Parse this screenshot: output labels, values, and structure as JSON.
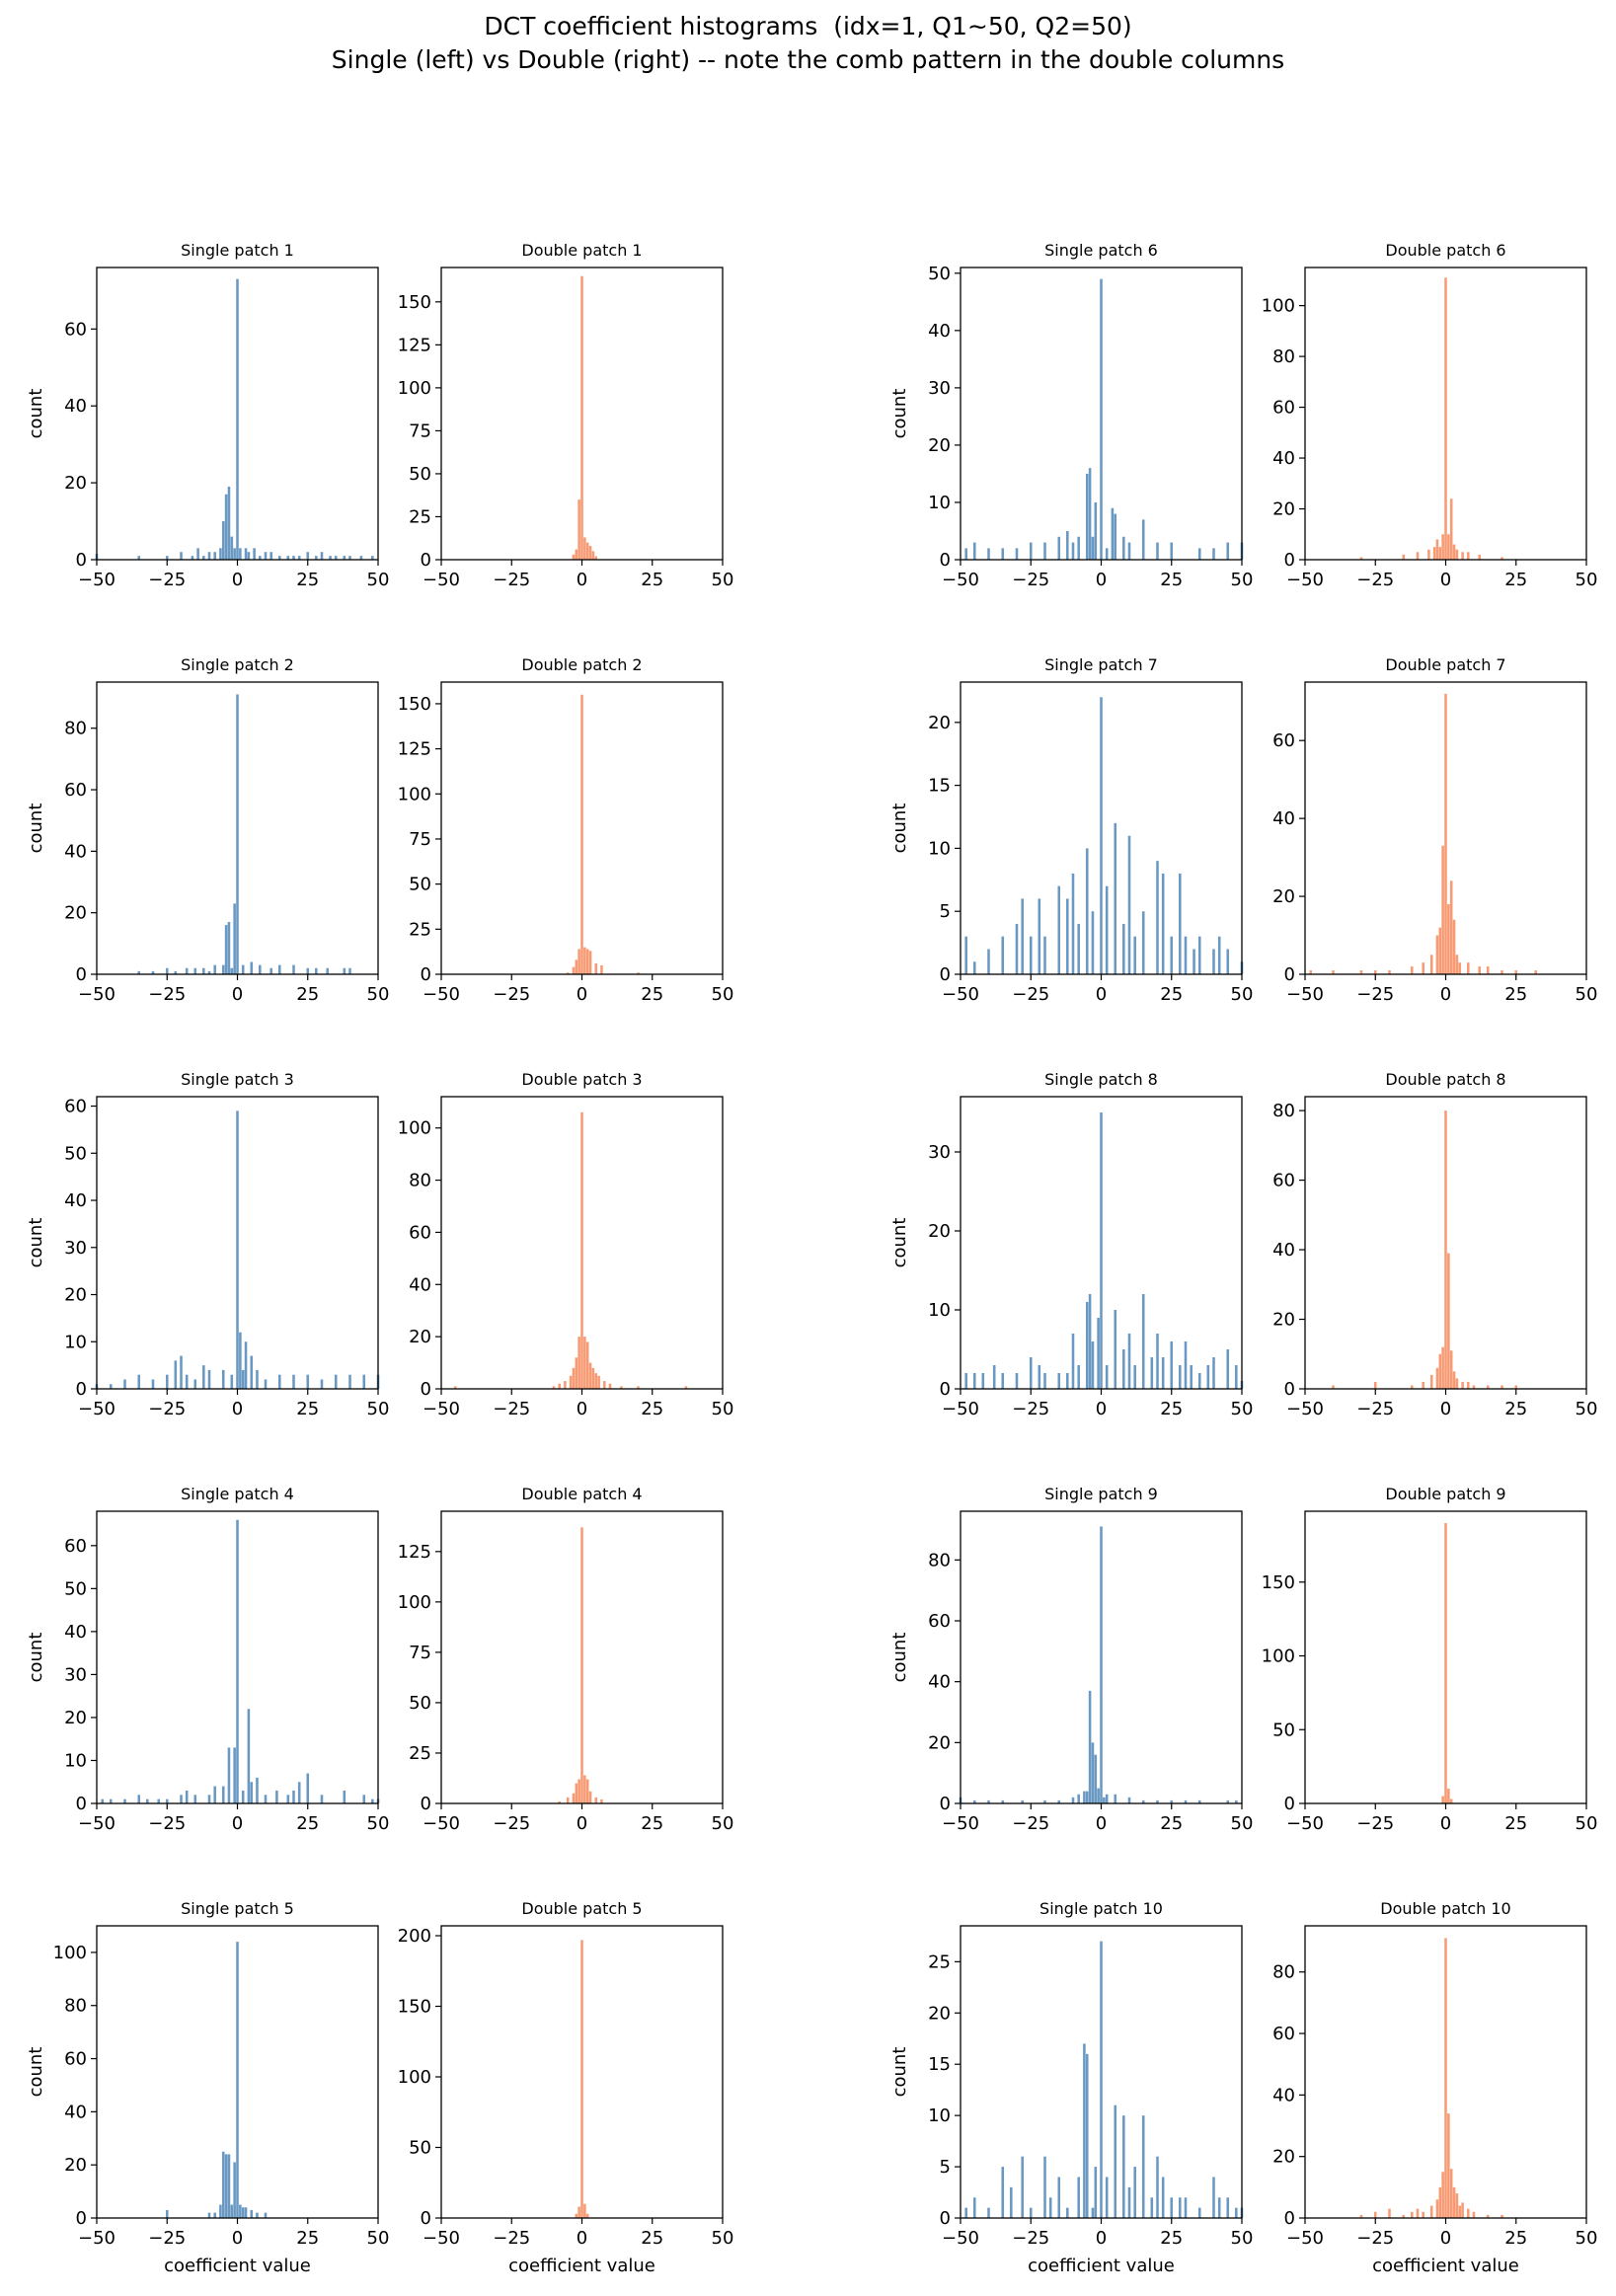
{
  "figure": {
    "title_line1": "DCT coefficient histograms  (idx=1, Q1~50, Q2=50)",
    "title_line2": "Single (left) vs Double (right) -- note the comb pattern in the double columns",
    "colors": {
      "single": "#4f87b9",
      "double": "#f7895c"
    },
    "xlabel": "coefficient value",
    "ylabel": "count"
  },
  "chart_data": [
    {
      "type": "bar",
      "title": "Single patch 1",
      "series": "single",
      "xlim": [
        -50,
        50
      ],
      "ylim": [
        0,
        76
      ],
      "yticks": [
        0,
        20,
        40,
        60
      ],
      "xticks": [
        -50,
        -25,
        0,
        25,
        50
      ],
      "x": [
        -50,
        -35,
        -25,
        -20,
        -16,
        -14,
        -12,
        -10,
        -8,
        -6,
        -5,
        -4,
        -3,
        -2,
        -1,
        0,
        1,
        3,
        4,
        6,
        8,
        10,
        12,
        15,
        18,
        20,
        22,
        25,
        28,
        30,
        33,
        35,
        38,
        40,
        44,
        48
      ],
      "values": [
        1.5,
        1,
        1,
        2,
        1,
        3,
        1,
        2,
        2,
        3,
        10,
        17,
        19,
        6,
        3,
        73,
        3,
        3,
        2,
        3,
        1,
        2,
        2,
        1,
        1,
        1,
        1,
        2,
        1,
        2,
        1,
        1,
        1,
        1,
        1,
        1
      ]
    },
    {
      "type": "bar",
      "title": "Double patch 1",
      "series": "double",
      "xlim": [
        -50,
        50
      ],
      "ylim": [
        0,
        170
      ],
      "yticks": [
        0,
        25,
        50,
        75,
        100,
        125,
        150
      ],
      "xticks": [
        -50,
        -25,
        0,
        25,
        50
      ],
      "x": [
        -3,
        -2,
        -1,
        0,
        1,
        2,
        3,
        4,
        5
      ],
      "values": [
        3,
        6,
        35,
        165,
        13,
        10,
        8,
        5,
        2
      ]
    },
    {
      "type": "bar",
      "title": "Single patch 2",
      "series": "single",
      "xlim": [
        -50,
        50
      ],
      "ylim": [
        0,
        95
      ],
      "yticks": [
        0,
        20,
        40,
        60,
        80
      ],
      "xticks": [
        -50,
        -25,
        0,
        25,
        50
      ],
      "x": [
        -35,
        -30,
        -25,
        -22,
        -18,
        -15,
        -12,
        -10,
        -8,
        -5,
        -4,
        -3,
        -2,
        -1,
        0,
        2,
        5,
        8,
        12,
        15,
        20,
        25,
        28,
        32,
        38,
        40
      ],
      "values": [
        1,
        1,
        2,
        1,
        2,
        2,
        2,
        1,
        3,
        3,
        16,
        17,
        2,
        23,
        91,
        3,
        4,
        3,
        2,
        3,
        3,
        2,
        2,
        2,
        2,
        2
      ]
    },
    {
      "type": "bar",
      "title": "Double patch 2",
      "series": "double",
      "xlim": [
        -50,
        50
      ],
      "ylim": [
        0,
        162
      ],
      "yticks": [
        0,
        25,
        50,
        75,
        100,
        125,
        150
      ],
      "xticks": [
        -50,
        -25,
        0,
        25,
        50
      ],
      "x": [
        -5,
        -3,
        -2,
        -1,
        0,
        1,
        2,
        3,
        5,
        7,
        20
      ],
      "values": [
        1,
        4,
        8,
        14,
        155,
        15,
        14,
        13,
        6,
        5,
        1
      ]
    },
    {
      "type": "bar",
      "title": "Single patch 3",
      "series": "single",
      "xlim": [
        -50,
        50
      ],
      "ylim": [
        0,
        62
      ],
      "yticks": [
        0,
        10,
        20,
        30,
        40,
        50,
        60
      ],
      "xticks": [
        -50,
        -25,
        0,
        25,
        50
      ],
      "x": [
        -50,
        -45,
        -40,
        -35,
        -30,
        -25,
        -22,
        -20,
        -18,
        -15,
        -12,
        -10,
        -5,
        -2,
        0,
        1,
        2,
        3,
        5,
        7,
        10,
        15,
        20,
        25,
        30,
        35,
        40,
        45,
        50
      ],
      "values": [
        1,
        1,
        2,
        3,
        2,
        3,
        6,
        7,
        3,
        2,
        5,
        4,
        4,
        3,
        59,
        12,
        4,
        10,
        7,
        4,
        2,
        3,
        3,
        3,
        2,
        3,
        3,
        3,
        3
      ]
    },
    {
      "type": "bar",
      "title": "Double patch 3",
      "series": "double",
      "xlim": [
        -50,
        50
      ],
      "ylim": [
        0,
        112
      ],
      "yticks": [
        0,
        20,
        40,
        60,
        80,
        100
      ],
      "xticks": [
        -50,
        -25,
        0,
        25,
        50
      ],
      "x": [
        -45,
        -10,
        -8,
        -6,
        -4,
        -3,
        -2,
        -1,
        0,
        1,
        2,
        3,
        4,
        5,
        6,
        8,
        10,
        14,
        20,
        37
      ],
      "values": [
        1,
        1,
        2,
        3,
        5,
        8,
        12,
        20,
        106,
        20,
        18,
        10,
        8,
        6,
        5,
        3,
        2,
        1,
        1,
        1
      ]
    },
    {
      "type": "bar",
      "title": "Single patch 4",
      "series": "single",
      "xlim": [
        -50,
        50
      ],
      "ylim": [
        0,
        68
      ],
      "yticks": [
        0,
        10,
        20,
        30,
        40,
        50,
        60
      ],
      "xticks": [
        -50,
        -25,
        0,
        25,
        50
      ],
      "x": [
        -48,
        -45,
        -40,
        -35,
        -32,
        -28,
        -25,
        -20,
        -18,
        -15,
        -10,
        -8,
        -5,
        -3,
        -1,
        0,
        2,
        4,
        5,
        7,
        10,
        14,
        18,
        20,
        22,
        25,
        30,
        38,
        45,
        48,
        50
      ],
      "values": [
        1,
        1,
        1,
        2,
        1,
        1,
        1,
        2,
        3,
        2,
        2,
        4,
        4,
        13,
        13,
        66,
        3,
        22,
        5,
        6,
        2,
        3,
        2,
        3,
        5,
        7,
        2,
        3,
        2,
        1,
        1
      ]
    },
    {
      "type": "bar",
      "title": "Double patch 4",
      "series": "double",
      "xlim": [
        -50,
        50
      ],
      "ylim": [
        0,
        145
      ],
      "yticks": [
        0,
        25,
        50,
        75,
        100,
        125
      ],
      "xticks": [
        -50,
        -25,
        0,
        25,
        50
      ],
      "x": [
        -8,
        -5,
        -3,
        -2,
        -1,
        0,
        1,
        2,
        3,
        5,
        7
      ],
      "values": [
        1,
        3,
        5,
        10,
        12,
        137,
        14,
        12,
        6,
        3,
        2
      ]
    },
    {
      "type": "bar",
      "title": "Single patch 5",
      "series": "single",
      "xlim": [
        -50,
        50
      ],
      "ylim": [
        0,
        110
      ],
      "yticks": [
        0,
        20,
        40,
        60,
        80,
        100
      ],
      "xticks": [
        -50,
        -25,
        0,
        25,
        50
      ],
      "x": [
        -25,
        -10,
        -8,
        -6,
        -5,
        -4,
        -3,
        -2,
        -1,
        0,
        1,
        2,
        3,
        5,
        7,
        10
      ],
      "values": [
        3,
        2,
        2,
        5,
        25,
        24,
        24,
        5,
        21,
        104,
        5,
        4,
        4,
        3,
        2,
        2
      ]
    },
    {
      "type": "bar",
      "title": "Double patch 5",
      "series": "double",
      "xlim": [
        -50,
        50
      ],
      "ylim": [
        0,
        207
      ],
      "yticks": [
        0,
        50,
        100,
        150,
        200
      ],
      "xticks": [
        -50,
        -25,
        0,
        25,
        50
      ],
      "x": [
        -2,
        -1,
        0,
        1,
        2
      ],
      "values": [
        3,
        8,
        197,
        10,
        3
      ]
    },
    {
      "type": "bar",
      "title": "Single patch 6",
      "series": "single",
      "xlim": [
        -50,
        50
      ],
      "ylim": [
        0,
        51
      ],
      "yticks": [
        0,
        10,
        20,
        30,
        40,
        50
      ],
      "xticks": [
        -50,
        -25,
        0,
        25,
        50
      ],
      "x": [
        -48,
        -45,
        -40,
        -35,
        -30,
        -25,
        -20,
        -15,
        -12,
        -10,
        -8,
        -5,
        -4,
        -3,
        -2,
        0,
        2,
        4,
        5,
        8,
        10,
        15,
        20,
        25,
        35,
        40,
        45,
        50
      ],
      "values": [
        2,
        3,
        2,
        2,
        2,
        3,
        3,
        4,
        5,
        3,
        4,
        15,
        16,
        4,
        10,
        49,
        2,
        9,
        8,
        4,
        3,
        7,
        3,
        3,
        2,
        2,
        3,
        3
      ]
    },
    {
      "type": "bar",
      "title": "Double patch 6",
      "series": "double",
      "xlim": [
        -50,
        50
      ],
      "ylim": [
        0,
        115
      ],
      "yticks": [
        0,
        20,
        40,
        60,
        80,
        100
      ],
      "xticks": [
        -50,
        -25,
        0,
        25,
        50
      ],
      "x": [
        -30,
        -15,
        -10,
        -6,
        -4,
        -3,
        -2,
        -1,
        0,
        1,
        2,
        3,
        4,
        6,
        8,
        12,
        20
      ],
      "values": [
        1,
        2,
        3,
        4,
        5,
        8,
        5,
        10,
        111,
        10,
        24,
        6,
        4,
        3,
        3,
        2,
        1
      ]
    },
    {
      "type": "bar",
      "title": "Single patch 7",
      "series": "single",
      "xlim": [
        -50,
        50
      ],
      "ylim": [
        0,
        23.2
      ],
      "yticks": [
        0,
        5,
        10,
        15,
        20
      ],
      "xticks": [
        -50,
        -25,
        0,
        25,
        50
      ],
      "x": [
        -48,
        -45,
        -40,
        -35,
        -30,
        -28,
        -25,
        -22,
        -20,
        -15,
        -12,
        -10,
        -8,
        -5,
        -3,
        0,
        2,
        5,
        8,
        10,
        12,
        15,
        20,
        22,
        25,
        28,
        30,
        33,
        35,
        40,
        42,
        45,
        50
      ],
      "values": [
        3,
        1,
        2,
        3,
        4,
        6,
        3,
        6,
        3,
        7,
        6,
        8,
        4,
        10,
        5,
        22,
        7,
        12,
        4,
        11,
        3,
        5,
        9,
        8,
        3,
        8,
        3,
        2,
        3,
        2,
        3,
        2,
        1
      ]
    },
    {
      "type": "bar",
      "title": "Double patch 7",
      "series": "double",
      "xlim": [
        -50,
        50
      ],
      "ylim": [
        0,
        75
      ],
      "yticks": [
        0,
        20,
        40,
        60
      ],
      "xticks": [
        -50,
        -25,
        0,
        25,
        50
      ],
      "x": [
        -48,
        -40,
        -30,
        -25,
        -20,
        -12,
        -8,
        -5,
        -3,
        -2,
        -1,
        0,
        1,
        2,
        3,
        4,
        5,
        8,
        12,
        15,
        20,
        25,
        32
      ],
      "values": [
        1,
        1,
        1,
        1,
        1,
        2,
        3,
        5,
        10,
        12,
        33,
        72,
        18,
        24,
        14,
        5,
        3,
        3,
        2,
        2,
        1,
        1,
        1
      ]
    },
    {
      "type": "bar",
      "title": "Single patch 8",
      "series": "single",
      "xlim": [
        -50,
        50
      ],
      "ylim": [
        0,
        37
      ],
      "yticks": [
        0,
        10,
        20,
        30
      ],
      "xticks": [
        -50,
        -25,
        0,
        25,
        50
      ],
      "x": [
        -48,
        -45,
        -42,
        -38,
        -35,
        -30,
        -25,
        -22,
        -20,
        -15,
        -12,
        -10,
        -8,
        -5,
        -4,
        -3,
        -1,
        0,
        2,
        5,
        8,
        10,
        12,
        15,
        18,
        20,
        22,
        25,
        28,
        30,
        32,
        35,
        38,
        40,
        45,
        48,
        50
      ],
      "values": [
        2,
        2,
        2,
        3,
        2,
        2,
        4,
        3,
        2,
        2,
        2,
        7,
        3,
        11,
        12,
        6,
        9,
        35,
        3,
        10,
        5,
        7,
        3,
        12,
        4,
        7,
        4,
        6,
        3,
        6,
        3,
        2,
        3,
        4,
        5,
        3,
        1
      ]
    },
    {
      "type": "bar",
      "title": "Double patch 8",
      "series": "double",
      "xlim": [
        -50,
        50
      ],
      "ylim": [
        0,
        84
      ],
      "yticks": [
        0,
        20,
        40,
        60,
        80
      ],
      "xticks": [
        -50,
        -25,
        0,
        25,
        50
      ],
      "x": [
        -40,
        -25,
        -12,
        -8,
        -5,
        -3,
        -2,
        -1,
        0,
        1,
        2,
        3,
        4,
        6,
        8,
        10,
        15,
        20,
        25
      ],
      "values": [
        1,
        2,
        1,
        2,
        4,
        6,
        10,
        12,
        80,
        39,
        11,
        5,
        3,
        2,
        2,
        1,
        1,
        1,
        1
      ]
    },
    {
      "type": "bar",
      "title": "Single patch 9",
      "series": "single",
      "xlim": [
        -50,
        50
      ],
      "ylim": [
        0,
        96
      ],
      "yticks": [
        0,
        20,
        40,
        60,
        80
      ],
      "xticks": [
        -50,
        -25,
        0,
        25,
        50
      ],
      "x": [
        -50,
        -45,
        -40,
        -35,
        -28,
        -20,
        -15,
        -10,
        -8,
        -6,
        -5,
        -4,
        -3,
        -2,
        -1,
        0,
        1,
        2,
        5,
        10,
        15,
        20,
        25,
        30,
        35,
        45,
        48
      ],
      "values": [
        2,
        1,
        1,
        1,
        1,
        1,
        1,
        2,
        3,
        4,
        4,
        37,
        20,
        16,
        5,
        91,
        2,
        3,
        3,
        2,
        1,
        1,
        1,
        1,
        1,
        1,
        1
      ]
    },
    {
      "type": "bar",
      "title": "Double patch 9",
      "series": "double",
      "xlim": [
        -50,
        50
      ],
      "ylim": [
        0,
        198
      ],
      "yticks": [
        0,
        50,
        100,
        150
      ],
      "xticks": [
        -50,
        -25,
        0,
        25,
        50
      ],
      "x": [
        -1,
        0,
        1,
        2
      ],
      "values": [
        5,
        190,
        10,
        3
      ]
    },
    {
      "type": "bar",
      "title": "Single patch 10",
      "series": "single",
      "xlim": [
        -50,
        50
      ],
      "ylim": [
        0,
        28.5
      ],
      "yticks": [
        0,
        5,
        10,
        15,
        20,
        25
      ],
      "xticks": [
        -50,
        -25,
        0,
        25,
        50
      ],
      "x": [
        -48,
        -45,
        -40,
        -35,
        -32,
        -28,
        -25,
        -20,
        -18,
        -15,
        -12,
        -8,
        -6,
        -5,
        -3,
        -2,
        0,
        2,
        5,
        8,
        10,
        12,
        15,
        18,
        20,
        22,
        25,
        28,
        30,
        35,
        40,
        42,
        45,
        48,
        50
      ],
      "values": [
        1,
        2,
        1,
        5,
        3,
        6,
        1,
        6,
        2,
        4,
        1,
        4,
        17,
        16,
        1,
        5,
        27,
        4,
        11,
        10,
        3,
        5,
        10,
        2,
        6,
        4,
        2,
        2,
        2,
        1,
        4,
        2,
        2,
        1,
        1
      ]
    },
    {
      "type": "bar",
      "title": "Double patch 10",
      "series": "double",
      "xlim": [
        -50,
        50
      ],
      "ylim": [
        0,
        95
      ],
      "yticks": [
        0,
        20,
        40,
        60,
        80
      ],
      "xticks": [
        -50,
        -25,
        0,
        25,
        50
      ],
      "x": [
        -30,
        -25,
        -20,
        -15,
        -12,
        -10,
        -8,
        -5,
        -3,
        -2,
        -1,
        0,
        1,
        2,
        3,
        4,
        5,
        6,
        8,
        10,
        15,
        20
      ],
      "values": [
        1,
        2,
        3,
        1,
        2,
        3,
        2,
        4,
        6,
        10,
        15,
        91,
        34,
        16,
        10,
        8,
        4,
        5,
        3,
        2,
        1,
        1
      ]
    }
  ]
}
